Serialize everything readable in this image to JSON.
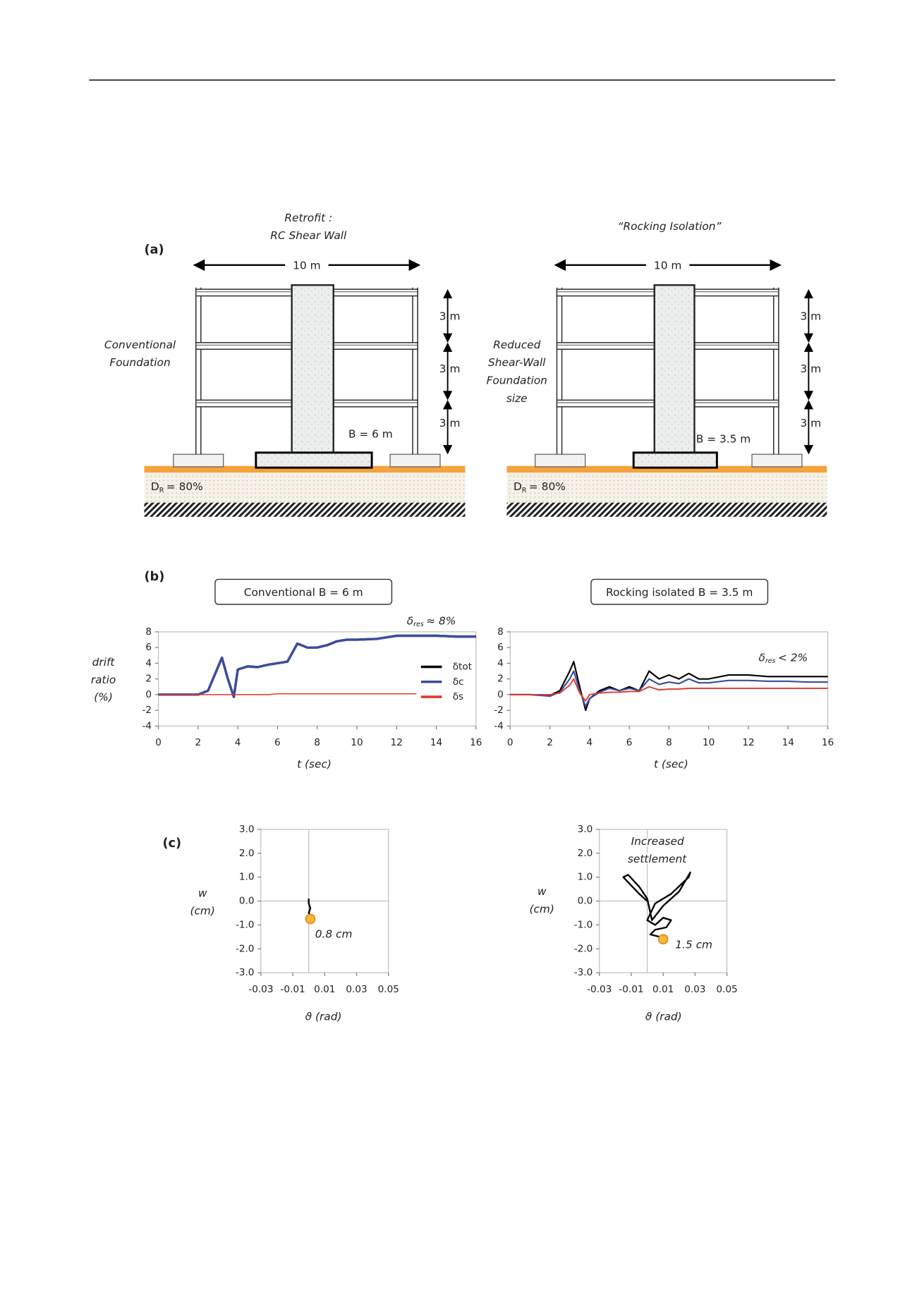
{
  "panel_a": {
    "label": "(a)",
    "left": {
      "title": [
        "Retrofit :",
        "RC Shear Wall"
      ],
      "width": "10 m",
      "heights": [
        "3 m",
        "3 m",
        "3 m"
      ],
      "side": [
        "Conventional",
        "Foundation"
      ],
      "footing": "B = 6 m",
      "soil": {
        "symbol": "D",
        "subscript": "R",
        "text": "= 80%"
      }
    },
    "right": {
      "title": [
        "“Rocking Isolation”"
      ],
      "width": "10 m",
      "heights": [
        "3 m",
        "3 m",
        "3 m"
      ],
      "side": [
        "Reduced",
        "Shear-Wall",
        "Foundation",
        "size"
      ],
      "footing": "B = 3.5 m",
      "soil": {
        "symbol": "D",
        "subscript": "R",
        "text": "= 80%"
      }
    }
  },
  "panel_b": {
    "label": "(b)"
  },
  "panel_c": {
    "label": "(c)"
  },
  "chart_data": [
    {
      "type": "line",
      "title": "Conventional B = 6 m",
      "annotations": [
        {
          "symbol": "δ",
          "subscript": "res",
          "text": "≈ 8%"
        }
      ],
      "ylabel": [
        "drift",
        "ratio",
        "(%)"
      ],
      "xlabel": "t (sec)",
      "x": [
        0,
        1,
        2,
        2.5,
        3,
        3.2,
        3.5,
        3.8,
        4,
        4.5,
        5,
        5.5,
        6,
        6.5,
        7,
        7.5,
        8,
        8.5,
        9,
        9.5,
        10,
        11,
        12,
        13,
        14,
        15,
        16
      ],
      "series": [
        {
          "name": "δtot",
          "color": "#000000",
          "values": [
            0,
            0,
            0,
            0.5,
            3.5,
            4.7,
            2,
            -0.3,
            3.2,
            3.6,
            3.5,
            3.8,
            4,
            4.2,
            6.5,
            6,
            6,
            6.3,
            6.8,
            7,
            7,
            7.1,
            7.5,
            7.5,
            7.5,
            7.4,
            7.4
          ]
        },
        {
          "name": "δc",
          "color": "#3b4da0",
          "values": [
            0,
            0,
            0,
            0.5,
            3.5,
            4.7,
            2,
            -0.3,
            3.2,
            3.6,
            3.5,
            3.8,
            4,
            4.2,
            6.5,
            6,
            6,
            6.3,
            6.8,
            7,
            7,
            7.1,
            7.5,
            7.5,
            7.5,
            7.4,
            7.4
          ]
        },
        {
          "name": "δs",
          "color": "#e0382b",
          "values": [
            0,
            0,
            0,
            0,
            0,
            0,
            0,
            0,
            0,
            0,
            0,
            0,
            0.1,
            0.1,
            0.1,
            0.1,
            0.1,
            0.1,
            0.1,
            0.1,
            0.1,
            0.1,
            0.1,
            0.1,
            null,
            null,
            null
          ]
        }
      ],
      "xlim": [
        0,
        16
      ],
      "xticks": [
        0,
        2,
        4,
        6,
        8,
        10,
        12,
        14,
        16
      ],
      "ylim": [
        -4,
        8
      ],
      "yticks": [
        -4,
        -2,
        0,
        2,
        4,
        6,
        8
      ],
      "legend": "right"
    },
    {
      "type": "line",
      "title": "Rocking isolated B = 3.5 m",
      "annotations": [
        {
          "symbol": "δ",
          "subscript": "res",
          "text": "< 2%"
        }
      ],
      "xlabel": "t (sec)",
      "x": [
        0,
        1,
        2,
        2.5,
        3,
        3.2,
        3.5,
        3.8,
        4,
        4.5,
        5,
        5.5,
        6,
        6.5,
        7,
        7.5,
        8,
        8.5,
        9,
        9.5,
        10,
        11,
        12,
        13,
        14,
        15,
        16
      ],
      "series": [
        {
          "color": "#000000",
          "values": [
            0,
            0,
            -0.1,
            0.5,
            3,
            4.2,
            1,
            -2,
            -0.5,
            0.5,
            1,
            0.5,
            1,
            0.5,
            3,
            2,
            2.5,
            2,
            2.7,
            2,
            2,
            2.5,
            2.5,
            2.3,
            2.3,
            2.3,
            2.3
          ]
        },
        {
          "color": "#3b4da0",
          "values": [
            0,
            0,
            -0.2,
            0.3,
            2,
            3,
            0.5,
            -1.5,
            -0.5,
            0.3,
            0.8,
            0.5,
            0.8,
            0.5,
            2,
            1.3,
            1.6,
            1.4,
            2,
            1.5,
            1.5,
            1.8,
            1.8,
            1.7,
            1.7,
            1.6,
            1.6
          ]
        },
        {
          "color": "#e0382b",
          "values": [
            0,
            0,
            0,
            0.2,
            1.2,
            2,
            0.2,
            -0.8,
            0,
            0.2,
            0.3,
            0.3,
            0.4,
            0.4,
            1,
            0.6,
            0.7,
            0.7,
            0.8,
            0.8,
            0.8,
            0.8,
            0.8,
            0.8,
            0.8,
            0.8,
            0.8
          ]
        }
      ],
      "xlim": [
        0,
        16
      ],
      "xticks": [
        0,
        2,
        4,
        6,
        8,
        10,
        12,
        14,
        16
      ],
      "ylim": [
        -4,
        8
      ],
      "yticks": [
        -4,
        -2,
        0,
        2,
        4,
        6,
        8
      ]
    },
    {
      "type": "line",
      "ylabel": [
        "w",
        "(cm)"
      ],
      "xlabel": "ϑ (rad)",
      "annotations": [
        "0.8 cm"
      ],
      "x": [
        0,
        0,
        0.001,
        0,
        0.001,
        0.001
      ],
      "series": [
        {
          "color": "#000000",
          "values": [
            0.1,
            -0.1,
            -0.3,
            -0.5,
            -0.6,
            -0.75
          ]
        }
      ],
      "end_marker": "#f6b93b",
      "xlim": [
        -0.03,
        0.05
      ],
      "xticks": [
        -0.03,
        -0.01,
        0.01,
        0.03,
        0.05
      ],
      "ylim": [
        -3,
        3
      ],
      "yticks": [
        {
          "value": 3,
          "label": "3.0"
        },
        {
          "value": 2,
          "label": "2.0"
        },
        {
          "value": 1,
          "label": "1.0"
        },
        {
          "value": 0,
          "label": "0.0"
        },
        {
          "value": -1,
          "label": "-1.0"
        },
        {
          "value": -2,
          "label": "-2.0"
        },
        {
          "value": -3,
          "label": "-3.0"
        }
      ],
      "origin_lines": true
    },
    {
      "type": "line",
      "ylabel": [
        "w",
        "(cm)"
      ],
      "xlabel": "ϑ (rad)",
      "annotations": [
        "Increased",
        "settlement",
        "1.5 cm"
      ],
      "x": [
        0,
        -0.005,
        -0.015,
        -0.012,
        -0.005,
        0,
        0.003,
        0.01,
        0.02,
        0.027,
        0.026,
        0.015,
        0.005,
        0,
        0.005,
        0.01,
        0.015,
        0.012,
        0.005,
        0.002,
        0.008,
        0.01
      ],
      "series": [
        {
          "color": "#000000",
          "values": [
            0,
            0.3,
            1.0,
            1.1,
            0.6,
            0.1,
            -0.8,
            -0.2,
            0.4,
            1.2,
            1.0,
            0.3,
            -0.1,
            -0.8,
            -1.0,
            -0.7,
            -0.8,
            -1.1,
            -1.2,
            -1.4,
            -1.5,
            -1.6
          ]
        }
      ],
      "end_marker": "#f6b93b",
      "xlim": [
        -0.03,
        0.05
      ],
      "xticks": [
        -0.03,
        -0.01,
        0.01,
        0.03,
        0.05
      ],
      "ylim": [
        -3,
        3
      ],
      "yticks": [
        {
          "value": 3,
          "label": "3.0"
        },
        {
          "value": 2,
          "label": "2.0"
        },
        {
          "value": 1,
          "label": "1.0"
        },
        {
          "value": 0,
          "label": "0.0"
        },
        {
          "value": -1,
          "label": "-1.0"
        },
        {
          "value": -2,
          "label": "-2.0"
        },
        {
          "value": -3,
          "label": "-3.0"
        }
      ],
      "origin_lines": true
    }
  ]
}
